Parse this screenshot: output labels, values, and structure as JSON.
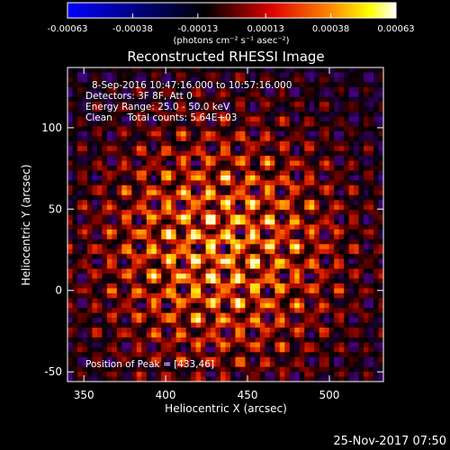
{
  "colorbar": {
    "tick_labels": [
      "-0.00063",
      "-0.00038",
      "-0.00013",
      "0.00013",
      "0.00038",
      "0.00063"
    ],
    "tick_values": [
      -0.00063,
      -0.00038,
      -0.00013,
      0.00013,
      0.00038,
      0.00063
    ],
    "range": [
      -0.00063,
      0.00063
    ],
    "units": "(photons cm⁻² s⁻¹ asec⁻²)",
    "palette": [
      "#0000ff",
      "#000000",
      "#ff0000",
      "#ffff00",
      "#ffffff"
    ]
  },
  "chart_data": {
    "type": "heatmap",
    "title": "Reconstructed RHESSI Image",
    "xlabel": "Heliocentric X (arcsec)",
    "ylabel": "Heliocentric Y (arcsec)",
    "xlim": [
      340,
      533
    ],
    "ylim": [
      -56,
      137
    ],
    "x_ticks": [
      350,
      400,
      450,
      500
    ],
    "y_ticks": [
      -50,
      0,
      50,
      100
    ],
    "annotations": [
      "8-Sep-2016 10:47:16.000 to 10:57:16.000",
      "Detectors: 3F 8F, Att 0",
      "Energy Range: 25.0 - 50.0 keV",
      "Clean     Total counts: 5.64E+03",
      "Position of Peak = [433,46]"
    ],
    "peak": [
      433,
      46
    ]
  },
  "footer": {
    "timestamp": "25-Nov-2017 07:50"
  }
}
